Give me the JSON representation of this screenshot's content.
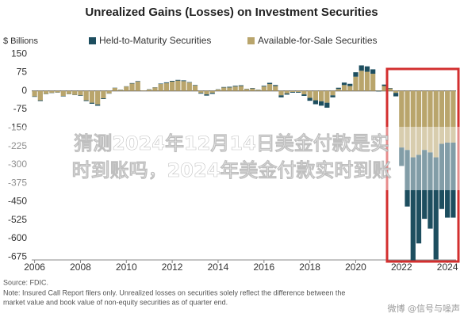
{
  "chart_data": {
    "type": "stacked_bar",
    "title": "Unrealized Gains (Losses) on Investment Securities",
    "y_label": "$ Billions",
    "categories": [
      "2006",
      null,
      null,
      null,
      null,
      null,
      null,
      null,
      "2008",
      null,
      null,
      null,
      null,
      null,
      null,
      null,
      "2010",
      null,
      null,
      null,
      null,
      null,
      null,
      null,
      "2012",
      null,
      null,
      null,
      null,
      null,
      null,
      null,
      "2014",
      null,
      null,
      null,
      null,
      null,
      null,
      null,
      "2016",
      null,
      null,
      null,
      null,
      null,
      null,
      null,
      "2018",
      null,
      null,
      null,
      null,
      null,
      null,
      null,
      "2020",
      null,
      null,
      null,
      null,
      null,
      null,
      null,
      "2022",
      null,
      null,
      null,
      null,
      null,
      null,
      null,
      "2024",
      null
    ],
    "series": [
      {
        "name": "Held-to-Maturity Securities",
        "color": "#1d4e5f",
        "values": [
          -2,
          -3,
          -1,
          -1,
          -1,
          -2,
          -1,
          -1,
          -2,
          -3,
          -4,
          -5,
          -3,
          -1,
          1,
          1,
          1,
          2,
          2,
          0,
          1,
          1,
          2,
          3,
          3,
          3,
          3,
          2,
          2,
          -3,
          -5,
          -4,
          1,
          2,
          3,
          3,
          3,
          1,
          2,
          1,
          3,
          5,
          4,
          -8,
          -5,
          -3,
          -3,
          -6,
          -12,
          -16,
          -18,
          -20,
          -8,
          5,
          10,
          9,
          18,
          22,
          22,
          18,
          -2,
          6,
          2,
          -14,
          -75,
          -230,
          -420,
          -360,
          -280,
          -310,
          -415,
          -265,
          -305,
          -305
        ]
      },
      {
        "name": "Available-for-Sale Securities",
        "color": "#b9a56c",
        "values": [
          -22,
          -38,
          -12,
          -8,
          -6,
          -20,
          -12,
          -16,
          -18,
          -38,
          -48,
          -55,
          -30,
          -10,
          12,
          4,
          18,
          30,
          38,
          2,
          6,
          14,
          28,
          32,
          38,
          42,
          40,
          34,
          22,
          -8,
          -14,
          -8,
          6,
          14,
          14,
          18,
          20,
          8,
          10,
          4,
          18,
          28,
          20,
          -18,
          -10,
          -4,
          -4,
          -14,
          -28,
          -38,
          -42,
          -48,
          -18,
          8,
          24,
          20,
          58,
          82,
          78,
          70,
          2,
          20,
          10,
          -8,
          -230,
          -240,
          -270,
          -260,
          -240,
          -250,
          -270,
          -215,
          -210,
          -210
        ]
      }
    ],
    "ylim": [
      -700,
      170
    ],
    "yticks": [
      150,
      75,
      0,
      -75,
      -150,
      -225,
      -300,
      -375,
      -450,
      -525,
      -600,
      -675
    ],
    "grid": false,
    "source": "Source: FDIC.",
    "note": [
      "Note: Insured Call Report filers only. Unrealized losses on securities solely reflect the difference between the",
      "market value and book value of non-equity securities as of quarter end."
    ],
    "overlay": [
      "猜测2024年12月14日美金付款是实",
      "时到账吗，2024年美金付款实时到账"
    ],
    "watermark": "微博 @信号与噪声"
  }
}
